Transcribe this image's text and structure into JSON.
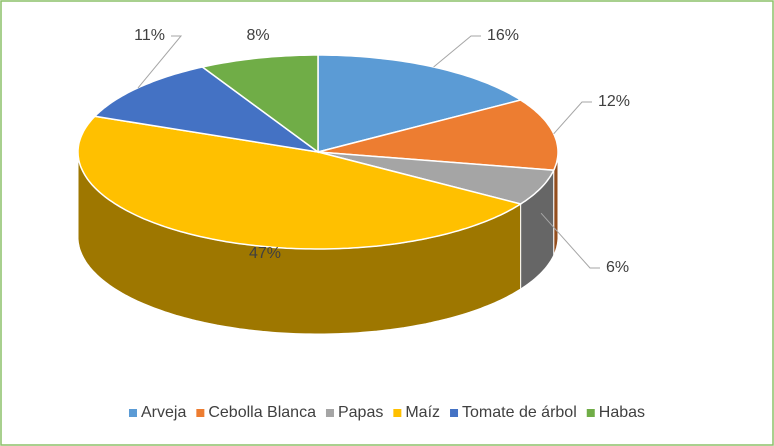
{
  "chart_data": {
    "type": "pie",
    "3d": true,
    "categories": [
      "Arveja",
      "Cebolla Blanca",
      "Papas",
      "Maíz",
      "Tomate de árbol",
      "Habas"
    ],
    "values": [
      16,
      12,
      6,
      47,
      11,
      8
    ],
    "value_labels": [
      "16%",
      "12%",
      "6%",
      "47%",
      "11%",
      "8%"
    ],
    "colors": [
      "#5b9bd5",
      "#ed7d31",
      "#a5a5a5",
      "#ffc000",
      "#4472c4",
      "#70ad47"
    ],
    "legend": "bottom"
  }
}
